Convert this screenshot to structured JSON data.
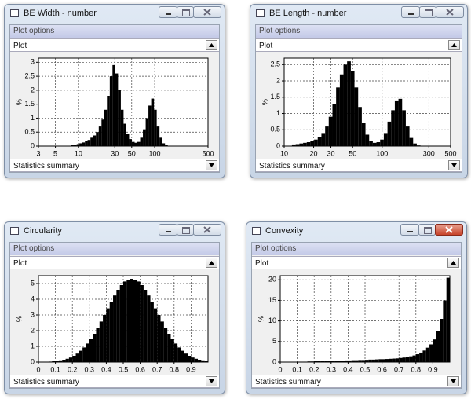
{
  "windows": [
    {
      "title": "BE Width - number",
      "plot_options": "Plot options",
      "plot_selector": "Plot",
      "stats_selector": "Statistics summary",
      "chart_data": {
        "type": "histogram",
        "ylabel": "%",
        "xscale": "log",
        "color": "#000000",
        "grid": true,
        "xlim": [
          3,
          500
        ],
        "ylim": [
          0,
          3.15
        ],
        "xticks": [
          3,
          5,
          10,
          30,
          50,
          100,
          500
        ],
        "yticks": [
          0,
          0.5,
          1,
          1.5,
          2,
          2.5,
          3
        ],
        "bins": [
          8,
          8.7,
          9.5,
          10.3,
          11.2,
          12.2,
          13.2,
          14.4,
          15.6,
          17,
          18.5,
          20.1,
          21.8,
          23.7,
          25.8,
          28,
          30.4,
          33.1,
          36,
          39.1,
          42.5,
          46.2,
          50.2,
          54.6,
          59.3,
          64.5,
          70.1,
          76.2,
          82.8,
          90,
          97.8,
          106.3,
          115.6,
          125.6,
          136.5,
          148.4,
          161.3
        ],
        "values": [
          0.03,
          0.05,
          0.07,
          0.1,
          0.13,
          0.17,
          0.22,
          0.3,
          0.38,
          0.5,
          0.7,
          0.95,
          1.3,
          1.8,
          2.5,
          2.9,
          2.6,
          2.0,
          1.3,
          0.8,
          0.45,
          0.25,
          0.15,
          0.12,
          0.15,
          0.3,
          0.6,
          1.0,
          1.45,
          1.7,
          1.3,
          0.7,
          0.3,
          0.1,
          0.03,
          0.01
        ]
      }
    },
    {
      "title": "BE Length - number",
      "plot_options": "Plot options",
      "plot_selector": "Plot",
      "stats_selector": "Statistics summary",
      "chart_data": {
        "type": "histogram",
        "ylabel": "%",
        "xscale": "log",
        "color": "#000000",
        "grid": true,
        "xlim": [
          10,
          500
        ],
        "ylim": [
          0,
          2.7
        ],
        "xticks": [
          10,
          20,
          30,
          50,
          100,
          300,
          500
        ],
        "yticks": [
          0,
          0.5,
          1,
          1.5,
          2,
          2.5
        ],
        "bins": [
          12,
          13.1,
          14.3,
          15.6,
          17,
          18.5,
          20.2,
          22,
          24,
          26.2,
          28.5,
          31.1,
          33.9,
          37,
          40.3,
          43.9,
          47.9,
          52.2,
          56.9,
          62,
          67.6,
          73.7,
          80.3,
          87.5,
          95.4,
          104,
          113.4,
          123.6,
          134.7,
          146.8,
          160,
          174.4,
          190.1,
          207.2,
          225.8,
          246.2
        ],
        "values": [
          0.05,
          0.06,
          0.08,
          0.1,
          0.12,
          0.15,
          0.2,
          0.28,
          0.4,
          0.6,
          0.9,
          1.3,
          1.8,
          2.2,
          2.5,
          2.6,
          2.3,
          1.8,
          1.2,
          0.7,
          0.35,
          0.15,
          0.1,
          0.12,
          0.2,
          0.4,
          0.75,
          1.1,
          1.4,
          1.45,
          1.1,
          0.6,
          0.25,
          0.08,
          0.02
        ]
      }
    },
    {
      "title": "Circularity",
      "plot_options": "Plot options",
      "plot_selector": "Plot",
      "stats_selector": "Statistics summary",
      "chart_data": {
        "type": "histogram",
        "ylabel": "%",
        "xscale": "linear",
        "color": "#000000",
        "grid": true,
        "xlim": [
          0,
          1
        ],
        "ylim": [
          0,
          5.5
        ],
        "xticks": [
          0,
          0.1,
          0.2,
          0.3,
          0.4,
          0.5,
          0.6,
          0.7,
          0.8,
          0.9
        ],
        "yticks": [
          0,
          1,
          2,
          3,
          4,
          5
        ],
        "bins": [
          0,
          0.02,
          0.04,
          0.06,
          0.08,
          0.1,
          0.12,
          0.14,
          0.16,
          0.18,
          0.2,
          0.22,
          0.24,
          0.26,
          0.28,
          0.3,
          0.32,
          0.34,
          0.36,
          0.38,
          0.4,
          0.42,
          0.44,
          0.46,
          0.48,
          0.5,
          0.52,
          0.54,
          0.56,
          0.58,
          0.6,
          0.62,
          0.64,
          0.66,
          0.68,
          0.7,
          0.72,
          0.74,
          0.76,
          0.78,
          0.8,
          0.82,
          0.84,
          0.86,
          0.88,
          0.9,
          0.92,
          0.94,
          0.96,
          0.98,
          1
        ],
        "values": [
          0.01,
          0.01,
          0.02,
          0.03,
          0.05,
          0.07,
          0.11,
          0.15,
          0.21,
          0.29,
          0.4,
          0.54,
          0.72,
          0.93,
          1.18,
          1.47,
          1.8,
          2.17,
          2.58,
          3.0,
          3.42,
          3.84,
          4.24,
          4.6,
          4.9,
          5.13,
          5.25,
          5.3,
          5.25,
          5.13,
          4.9,
          4.6,
          4.24,
          3.84,
          3.42,
          3.0,
          2.58,
          2.17,
          1.8,
          1.47,
          1.18,
          0.93,
          0.72,
          0.54,
          0.4,
          0.29,
          0.21,
          0.15,
          0.11,
          0.1
        ]
      }
    },
    {
      "title": "Convexity",
      "plot_options": "Plot options",
      "plot_selector": "Plot",
      "stats_selector": "Statistics summary",
      "chart_data": {
        "type": "histogram",
        "ylabel": "%",
        "xscale": "linear",
        "color": "#000000",
        "grid": true,
        "xlim": [
          0,
          1
        ],
        "ylim": [
          0,
          21
        ],
        "xticks": [
          0,
          0.1,
          0.2,
          0.3,
          0.4,
          0.5,
          0.6,
          0.7,
          0.8,
          0.9
        ],
        "yticks": [
          0,
          5,
          10,
          15,
          20
        ],
        "bins": [
          0,
          0.02,
          0.04,
          0.06,
          0.08,
          0.1,
          0.12,
          0.14,
          0.16,
          0.18,
          0.2,
          0.22,
          0.24,
          0.26,
          0.28,
          0.3,
          0.32,
          0.34,
          0.36,
          0.38,
          0.4,
          0.42,
          0.44,
          0.46,
          0.48,
          0.5,
          0.52,
          0.54,
          0.56,
          0.58,
          0.6,
          0.62,
          0.64,
          0.66,
          0.68,
          0.7,
          0.72,
          0.74,
          0.76,
          0.78,
          0.8,
          0.82,
          0.84,
          0.86,
          0.88,
          0.9,
          0.92,
          0.94,
          0.96,
          0.98,
          1
        ],
        "values": [
          0,
          0,
          0,
          0,
          0,
          0.1,
          0.1,
          0.1,
          0.15,
          0.15,
          0.2,
          0.2,
          0.2,
          0.25,
          0.25,
          0.3,
          0.3,
          0.35,
          0.35,
          0.4,
          0.4,
          0.45,
          0.45,
          0.5,
          0.5,
          0.55,
          0.6,
          0.6,
          0.65,
          0.7,
          0.7,
          0.75,
          0.8,
          0.85,
          0.9,
          1.0,
          1.1,
          1.2,
          1.4,
          1.6,
          1.9,
          2.3,
          2.8,
          3.5,
          4.3,
          5.5,
          7.5,
          10.5,
          15,
          20.5
        ]
      }
    }
  ]
}
